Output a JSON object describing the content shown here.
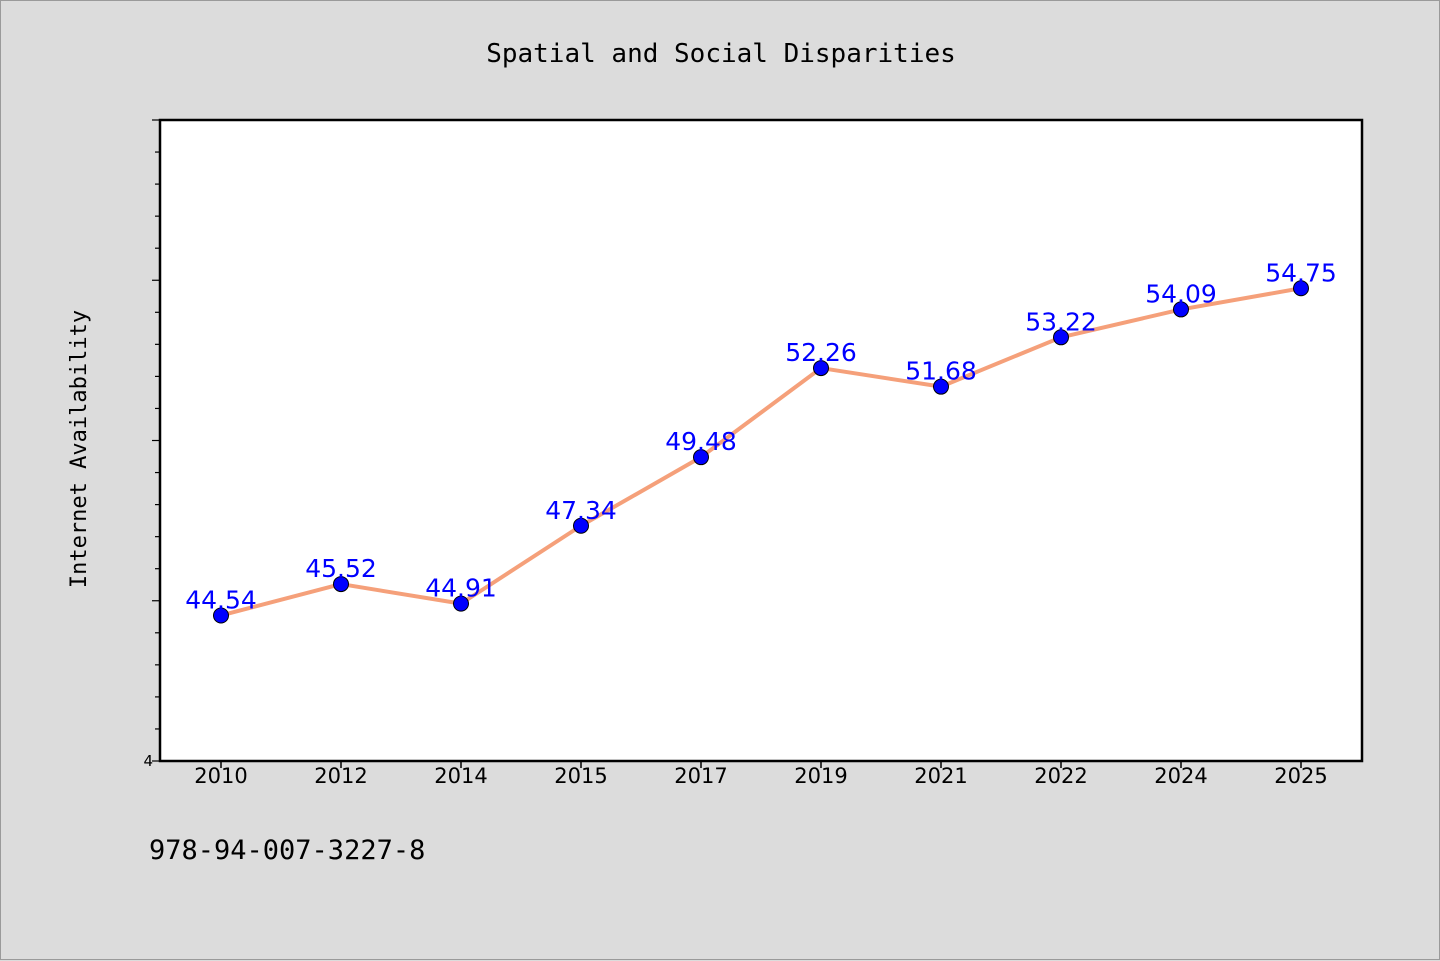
{
  "chart_data": {
    "type": "line",
    "title": "Spatial and Social Disparities",
    "xlabel": "",
    "ylabel": "Internet Availability",
    "categories": [
      "2010",
      "2012",
      "2014",
      "2015",
      "2017",
      "2019",
      "2021",
      "2022",
      "2024",
      "2025"
    ],
    "series": [
      {
        "values": [
          44.54,
          45.52,
          44.91,
          47.34,
          49.48,
          52.26,
          51.68,
          53.22,
          54.09,
          54.75
        ],
        "data_labels": [
          "44.54",
          "45.52",
          "44.91",
          "47.34",
          "49.48",
          "52.26",
          "51.68",
          "53.22",
          "54.09",
          "54.75"
        ],
        "line_color": "#f5a07a",
        "marker_color": "#0000ff"
      }
    ],
    "ylim": [
      40,
      60
    ],
    "y_tick_labels": [
      "4"
    ],
    "grid": false,
    "legend": "none"
  },
  "footnote": "978-94-007-3227-8",
  "colors": {
    "background": "#dcdcdc",
    "plot_area": "#ffffff",
    "data_label": "#0000ff"
  }
}
